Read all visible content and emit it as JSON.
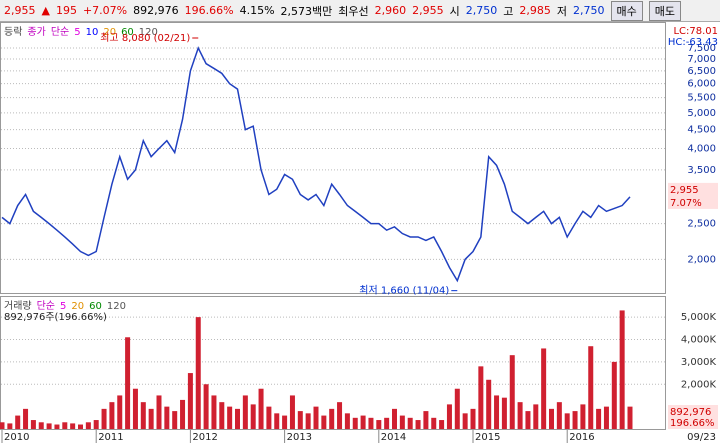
{
  "header": {
    "price": "2,955",
    "arrow": "▲",
    "change": "195",
    "rate": "+7.07%",
    "volume": "892,976",
    "volume_ratio": "196.66%",
    "turnover": "4.15%",
    "amount": "2,573백만",
    "best_label": "최우선",
    "ask": "2,960",
    "bid": "2,955",
    "open_label": "시",
    "open": "2,750",
    "high_label": "고",
    "high": "2,985",
    "low_label": "저",
    "low": "2,750",
    "buy": "매수",
    "sell": "매도"
  },
  "chart_data": [
    {
      "type": "line",
      "legend_title": "등락",
      "legend_price": "종가",
      "legend_kind": "단순",
      "ma_labels": [
        {
          "name": "5",
          "color": "#e000e0"
        },
        {
          "name": "10",
          "color": "#0000ff"
        },
        {
          "name": "20",
          "color": "#e09000"
        },
        {
          "name": "60",
          "color": "#008800"
        },
        {
          "name": "120",
          "color": "#555555"
        }
      ],
      "lc_label": "LC:78.01",
      "hc_label": "HC:-63.43",
      "high_annotation": "최고 8,080 (02/21)",
      "low_annotation": "최저 1,660 (11/04)",
      "current_price": "2,955",
      "current_rate": "7.07%",
      "log_scale": true,
      "grid": true,
      "ylim": [
        1620,
        8770
      ],
      "yticks": [
        {
          "value": 2000,
          "label": "2,000"
        },
        {
          "value": 2500,
          "label": "2,500"
        },
        {
          "value": 3500,
          "label": "3,500"
        },
        {
          "value": 4000,
          "label": "4,000"
        },
        {
          "value": 4500,
          "label": "4,500"
        },
        {
          "value": 5000,
          "label": "5,000"
        },
        {
          "value": 5500,
          "label": "5,500"
        },
        {
          "value": 6000,
          "label": "6,000"
        },
        {
          "value": 6500,
          "label": "6,500"
        },
        {
          "value": 7000,
          "label": "7,000"
        },
        {
          "value": 7500,
          "label": "7,500"
        }
      ],
      "series": [
        {
          "name": "종가",
          "color": "#2040c0",
          "values": [
            2600,
            2500,
            2800,
            3000,
            2700,
            2600,
            2500,
            2400,
            2300,
            2200,
            2100,
            2050,
            2100,
            2600,
            3200,
            3800,
            3300,
            3500,
            4200,
            3800,
            4000,
            4200,
            3900,
            4800,
            6500,
            7500,
            6800,
            6600,
            6400,
            6000,
            5800,
            4500,
            4600,
            3500,
            3000,
            3100,
            3400,
            3300,
            3000,
            2900,
            3000,
            2800,
            3200,
            3000,
            2800,
            2700,
            2600,
            2500,
            2500,
            2400,
            2450,
            2350,
            2300,
            2300,
            2250,
            2300,
            2100,
            1900,
            1750,
            2000,
            2100,
            2300,
            3800,
            3600,
            3200,
            2700,
            2600,
            2500,
            2600,
            2700,
            2500,
            2600,
            2300,
            2500,
            2700,
            2600,
            2800,
            2700,
            2750,
            2800,
            2955
          ]
        }
      ]
    },
    {
      "type": "bar",
      "legend_title": "거래량",
      "legend_kind": "단순",
      "ma_labels": [
        {
          "name": "5",
          "color": "#e000e0"
        },
        {
          "name": "20",
          "color": "#e09000"
        },
        {
          "name": "60",
          "color": "#008800"
        },
        {
          "name": "120",
          "color": "#555555"
        }
      ],
      "subtitle": "892,976주(196.66%)",
      "current_volume": "892,976",
      "current_ratio": "196.66%",
      "grid": true,
      "ylim": [
        0,
        5900
      ],
      "yticks": [
        {
          "value": 2000,
          "label": "2,000K"
        },
        {
          "value": 3000,
          "label": "3,000K"
        },
        {
          "value": 4000,
          "label": "4,000K"
        },
        {
          "value": 5000,
          "label": "5,000K"
        }
      ],
      "categories": [
        "2010",
        null,
        null,
        null,
        null,
        null,
        null,
        null,
        null,
        null,
        null,
        null,
        "2011",
        null,
        null,
        null,
        null,
        null,
        null,
        null,
        null,
        null,
        null,
        null,
        "2012",
        null,
        null,
        null,
        null,
        null,
        null,
        null,
        null,
        null,
        null,
        null,
        "2013",
        null,
        null,
        null,
        null,
        null,
        null,
        null,
        null,
        null,
        null,
        null,
        "2014",
        null,
        null,
        null,
        null,
        null,
        null,
        null,
        null,
        null,
        null,
        null,
        "2015",
        null,
        null,
        null,
        null,
        null,
        null,
        null,
        null,
        null,
        null,
        null,
        "2016",
        null,
        null,
        null,
        null,
        null,
        null,
        null,
        "09/23"
      ],
      "series": [
        {
          "name": "거래량",
          "color": "#d02030",
          "values": [
            300,
            250,
            600,
            900,
            400,
            300,
            250,
            200,
            300,
            250,
            200,
            300,
            400,
            900,
            1200,
            1500,
            4100,
            1800,
            1200,
            900,
            1500,
            1000,
            800,
            1300,
            2500,
            5000,
            2000,
            1500,
            1200,
            1000,
            900,
            1500,
            1100,
            1800,
            1000,
            700,
            600,
            1500,
            800,
            700,
            1000,
            600,
            900,
            1200,
            700,
            500,
            600,
            500,
            400,
            500,
            900,
            600,
            500,
            400,
            800,
            500,
            400,
            1100,
            1800,
            700,
            900,
            2800,
            2200,
            1500,
            1400,
            3300,
            1200,
            800,
            1100,
            3600,
            900,
            1200,
            700,
            800,
            1100,
            3700,
            900,
            1000,
            3000,
            5300,
            1000
          ]
        }
      ]
    }
  ]
}
